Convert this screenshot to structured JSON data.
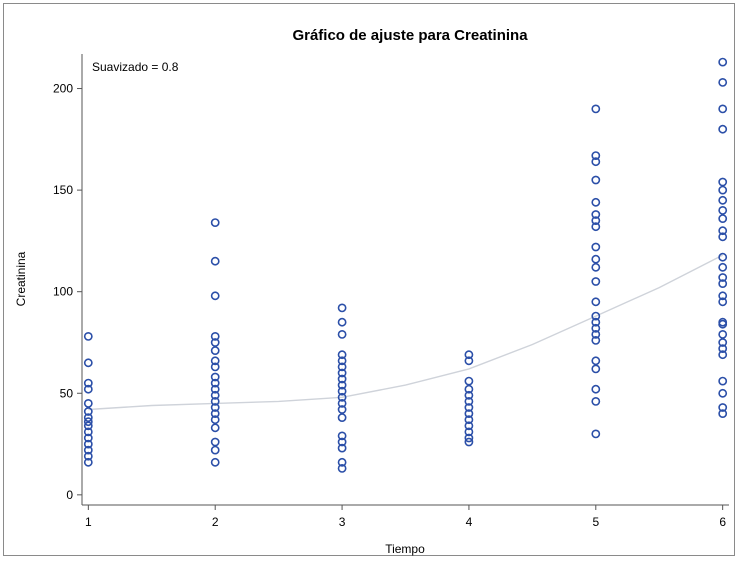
{
  "chart_data": {
    "type": "scatter",
    "title": "Gráfico de ajuste para Creatinina",
    "xlabel": "Tiempo",
    "ylabel": "Creatinina",
    "annotation": "Suavizado = 0.8",
    "xlim": [
      0.95,
      6.05
    ],
    "ylim": [
      -5,
      217
    ],
    "x_ticks": [
      1,
      2,
      3,
      4,
      5,
      6
    ],
    "y_ticks": [
      0,
      50,
      100,
      150,
      200
    ],
    "grid": false,
    "colors": {
      "marker": "#2b4fa8",
      "fit_line": "#cfd3da",
      "axis": "#555555"
    },
    "points": [
      {
        "x": 1,
        "y": 78
      },
      {
        "x": 1,
        "y": 65
      },
      {
        "x": 1,
        "y": 55
      },
      {
        "x": 1,
        "y": 52
      },
      {
        "x": 1,
        "y": 45
      },
      {
        "x": 1,
        "y": 41
      },
      {
        "x": 1,
        "y": 38
      },
      {
        "x": 1,
        "y": 36
      },
      {
        "x": 1,
        "y": 34
      },
      {
        "x": 1,
        "y": 31
      },
      {
        "x": 1,
        "y": 28
      },
      {
        "x": 1,
        "y": 25
      },
      {
        "x": 1,
        "y": 22
      },
      {
        "x": 1,
        "y": 19
      },
      {
        "x": 1,
        "y": 16
      },
      {
        "x": 2,
        "y": 134
      },
      {
        "x": 2,
        "y": 115
      },
      {
        "x": 2,
        "y": 98
      },
      {
        "x": 2,
        "y": 78
      },
      {
        "x": 2,
        "y": 75
      },
      {
        "x": 2,
        "y": 71
      },
      {
        "x": 2,
        "y": 66
      },
      {
        "x": 2,
        "y": 63
      },
      {
        "x": 2,
        "y": 58
      },
      {
        "x": 2,
        "y": 55
      },
      {
        "x": 2,
        "y": 52
      },
      {
        "x": 2,
        "y": 49
      },
      {
        "x": 2,
        "y": 46
      },
      {
        "x": 2,
        "y": 43
      },
      {
        "x": 2,
        "y": 40
      },
      {
        "x": 2,
        "y": 37
      },
      {
        "x": 2,
        "y": 33
      },
      {
        "x": 2,
        "y": 26
      },
      {
        "x": 2,
        "y": 22
      },
      {
        "x": 2,
        "y": 16
      },
      {
        "x": 3,
        "y": 92
      },
      {
        "x": 3,
        "y": 85
      },
      {
        "x": 3,
        "y": 79
      },
      {
        "x": 3,
        "y": 69
      },
      {
        "x": 3,
        "y": 66
      },
      {
        "x": 3,
        "y": 63
      },
      {
        "x": 3,
        "y": 60
      },
      {
        "x": 3,
        "y": 57
      },
      {
        "x": 3,
        "y": 54
      },
      {
        "x": 3,
        "y": 51
      },
      {
        "x": 3,
        "y": 48
      },
      {
        "x": 3,
        "y": 45
      },
      {
        "x": 3,
        "y": 42
      },
      {
        "x": 3,
        "y": 38
      },
      {
        "x": 3,
        "y": 29
      },
      {
        "x": 3,
        "y": 26
      },
      {
        "x": 3,
        "y": 23
      },
      {
        "x": 3,
        "y": 16
      },
      {
        "x": 3,
        "y": 13
      },
      {
        "x": 4,
        "y": 69
      },
      {
        "x": 4,
        "y": 66
      },
      {
        "x": 4,
        "y": 56
      },
      {
        "x": 4,
        "y": 52
      },
      {
        "x": 4,
        "y": 49
      },
      {
        "x": 4,
        "y": 46
      },
      {
        "x": 4,
        "y": 43
      },
      {
        "x": 4,
        "y": 40
      },
      {
        "x": 4,
        "y": 37
      },
      {
        "x": 4,
        "y": 34
      },
      {
        "x": 4,
        "y": 31
      },
      {
        "x": 4,
        "y": 28
      },
      {
        "x": 4,
        "y": 26
      },
      {
        "x": 5,
        "y": 190
      },
      {
        "x": 5,
        "y": 167
      },
      {
        "x": 5,
        "y": 164
      },
      {
        "x": 5,
        "y": 155
      },
      {
        "x": 5,
        "y": 144
      },
      {
        "x": 5,
        "y": 138
      },
      {
        "x": 5,
        "y": 135
      },
      {
        "x": 5,
        "y": 132
      },
      {
        "x": 5,
        "y": 122
      },
      {
        "x": 5,
        "y": 116
      },
      {
        "x": 5,
        "y": 112
      },
      {
        "x": 5,
        "y": 105
      },
      {
        "x": 5,
        "y": 95
      },
      {
        "x": 5,
        "y": 88
      },
      {
        "x": 5,
        "y": 85
      },
      {
        "x": 5,
        "y": 82
      },
      {
        "x": 5,
        "y": 79
      },
      {
        "x": 5,
        "y": 76
      },
      {
        "x": 5,
        "y": 66
      },
      {
        "x": 5,
        "y": 62
      },
      {
        "x": 5,
        "y": 52
      },
      {
        "x": 5,
        "y": 46
      },
      {
        "x": 5,
        "y": 30
      },
      {
        "x": 6,
        "y": 213
      },
      {
        "x": 6,
        "y": 203
      },
      {
        "x": 6,
        "y": 190
      },
      {
        "x": 6,
        "y": 180
      },
      {
        "x": 6,
        "y": 154
      },
      {
        "x": 6,
        "y": 150
      },
      {
        "x": 6,
        "y": 145
      },
      {
        "x": 6,
        "y": 140
      },
      {
        "x": 6,
        "y": 136
      },
      {
        "x": 6,
        "y": 130
      },
      {
        "x": 6,
        "y": 127
      },
      {
        "x": 6,
        "y": 117
      },
      {
        "x": 6,
        "y": 112
      },
      {
        "x": 6,
        "y": 107
      },
      {
        "x": 6,
        "y": 104
      },
      {
        "x": 6,
        "y": 98
      },
      {
        "x": 6,
        "y": 95
      },
      {
        "x": 6,
        "y": 85
      },
      {
        "x": 6,
        "y": 84
      },
      {
        "x": 6,
        "y": 79
      },
      {
        "x": 6,
        "y": 75
      },
      {
        "x": 6,
        "y": 72
      },
      {
        "x": 6,
        "y": 69
      },
      {
        "x": 6,
        "y": 56
      },
      {
        "x": 6,
        "y": 50
      },
      {
        "x": 6,
        "y": 43
      },
      {
        "x": 6,
        "y": 40
      }
    ],
    "fit_line": {
      "x": [
        1,
        1.5,
        2,
        2.5,
        3,
        3.5,
        4,
        4.5,
        5,
        5.5,
        6
      ],
      "y": [
        42,
        44,
        45,
        46,
        48,
        54,
        62,
        74,
        88,
        102,
        118
      ]
    }
  }
}
